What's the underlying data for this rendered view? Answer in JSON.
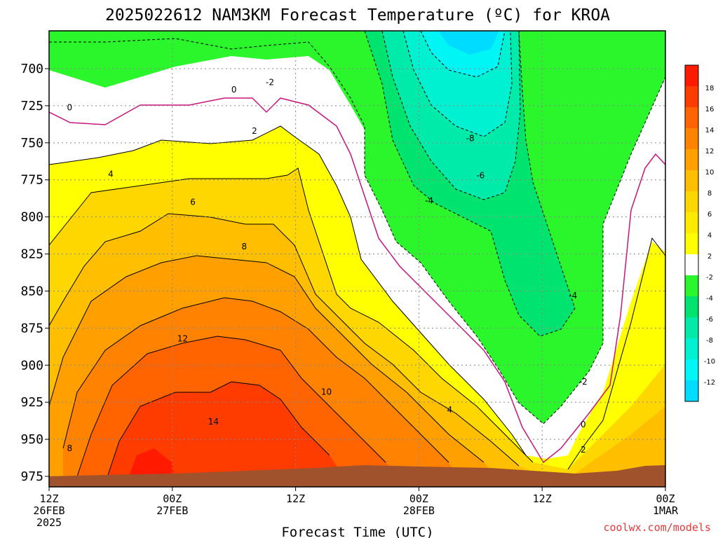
{
  "chart_data": {
    "type": "heatmap",
    "title": "2025022612 NAM3KM Forecast Temperature (ºC) for KROA",
    "xlabel": "Forecast Time (UTC)",
    "ylabel": "",
    "y_scale": "pressure (hPa), inverted",
    "ylim": [
      975,
      680
    ],
    "y_ticks": [
      "700",
      "725",
      "750",
      "775",
      "800",
      "825",
      "850",
      "875",
      "900",
      "925",
      "950",
      "975"
    ],
    "x_ticks": [
      {
        "l1": "12Z",
        "l2": "26FEB",
        "l3": "2025"
      },
      {
        "l1": "00Z",
        "l2": "27FEB",
        "l3": ""
      },
      {
        "l1": "12Z",
        "l2": "",
        "l3": ""
      },
      {
        "l1": "00Z",
        "l2": "28FEB",
        "l3": ""
      },
      {
        "l1": "12Z",
        "l2": "",
        "l3": ""
      },
      {
        "l1": "00Z",
        "l2": "1MAR",
        "l3": ""
      }
    ],
    "x_hours": [
      0,
      12,
      24,
      36,
      48,
      60
    ],
    "grid": true,
    "legend": "right",
    "colorbar": [
      {
        "label": "18",
        "color": "#ff1a00"
      },
      {
        "label": "16",
        "color": "#ff3c00"
      },
      {
        "label": "14",
        "color": "#ff6400"
      },
      {
        "label": "12",
        "color": "#ff8200"
      },
      {
        "label": "10",
        "color": "#ffa000"
      },
      {
        "label": "8",
        "color": "#ffbe00"
      },
      {
        "label": "6",
        "color": "#ffd700"
      },
      {
        "label": "4",
        "color": "#ffeb00"
      },
      {
        "label": "2",
        "color": "#ffff00"
      },
      {
        "label": "-2",
        "color": "#ffffff"
      },
      {
        "label": "-4",
        "color": "#2bf52b"
      },
      {
        "label": "-6",
        "color": "#00e36e"
      },
      {
        "label": "-8",
        "color": "#00ebaa"
      },
      {
        "label": "-10",
        "color": "#00f0d2"
      },
      {
        "label": "-12",
        "color": "#00f5f5"
      },
      {
        "label": "",
        "color": "#00dcff"
      }
    ],
    "ground_color": "#a0522d",
    "contour_labels": [
      {
        "text": "0",
        "hour": 2.0,
        "p": 728
      },
      {
        "text": "0",
        "hour": 18.0,
        "p": 716
      },
      {
        "text": "-2",
        "hour": 21.5,
        "p": 711
      },
      {
        "text": "2",
        "hour": 20.0,
        "p": 744
      },
      {
        "text": "4",
        "hour": 6.0,
        "p": 773
      },
      {
        "text": "6",
        "hour": 14.0,
        "p": 792
      },
      {
        "text": "8",
        "hour": 19.0,
        "p": 822
      },
      {
        "text": "12",
        "hour": 13.0,
        "p": 884
      },
      {
        "text": "14",
        "hour": 16.0,
        "p": 940
      },
      {
        "text": "10",
        "hour": 27.0,
        "p": 920
      },
      {
        "text": "4",
        "hour": 39.0,
        "p": 932
      },
      {
        "text": "8",
        "hour": 2.0,
        "p": 958
      },
      {
        "text": "-8",
        "hour": 41.0,
        "p": 749
      },
      {
        "text": "-6",
        "hour": 42.0,
        "p": 774
      },
      {
        "text": "-4",
        "hour": 37.0,
        "p": 791
      },
      {
        "text": "-4",
        "hour": 51.0,
        "p": 855
      },
      {
        "text": "-2",
        "hour": 52.0,
        "p": 913
      },
      {
        "text": "0",
        "hour": 52.0,
        "p": 942
      },
      {
        "text": "2",
        "hour": 52.0,
        "p": 959
      }
    ]
  },
  "credit": "coolwx.com/models"
}
